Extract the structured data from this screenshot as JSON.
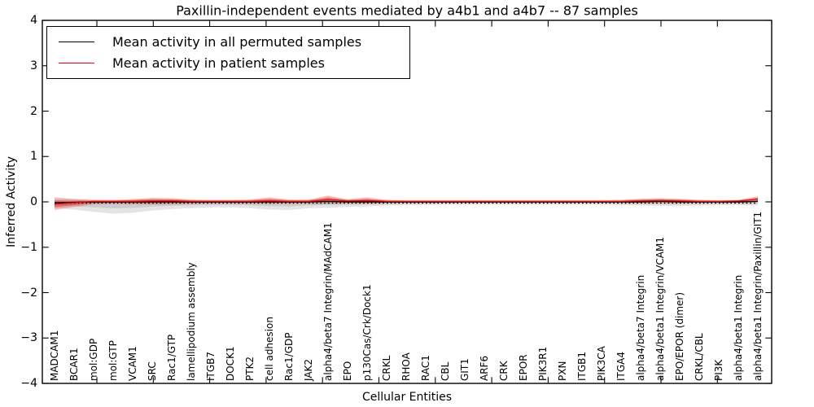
{
  "title": "Paxillin-independent events mediated by a4b1 and a4b7 -- 87 samples",
  "axes": {
    "xlabel": "Cellular Entities",
    "ylabel": "Inferred Activity",
    "ytick_labels": [
      "4",
      "3",
      "2",
      "1",
      "0",
      "−1",
      "−2",
      "−3",
      "−4"
    ]
  },
  "legend": {
    "items": [
      {
        "label": "Mean activity in all permuted samples",
        "color": "#000000"
      },
      {
        "label": "Mean activity in patient samples",
        "color": "#ff0000"
      }
    ]
  },
  "chart_data": {
    "type": "line",
    "title": "Paxillin-independent events mediated by a4b1 and a4b7 -- 87 samples",
    "xlabel": "Cellular Entities",
    "ylabel": "Inferred Activity",
    "ylim": [
      -4,
      4
    ],
    "yticks": [
      4,
      3,
      2,
      1,
      0,
      -1,
      -2,
      -3,
      -4
    ],
    "grid": false,
    "legend_position": "upper left",
    "zero_line_style": "dotted",
    "sample_count_in_title": 87,
    "categories": [
      "MADCAM1",
      "BCAR1",
      "mol:GDP",
      "mol:GTP",
      "VCAM1",
      "SRC",
      "Rac1/GTP",
      "lamellipodium assembly",
      "ITGB7",
      "DOCK1",
      "PTK2",
      "cell adhesion",
      "Rac1/GDP",
      "JAK2",
      "alpha4/beta7 Integrin/MAdCAM1",
      "EPO",
      "p130Cas/Crk/Dock1",
      "CRKL",
      "RHOA",
      "RAC1",
      "CBL",
      "GIT1",
      "ARF6",
      "CRK",
      "EPOR",
      "PIK3R1",
      "PXN",
      "ITGB1",
      "PIK3CA",
      "ITGA4",
      "alpha4/beta7 Integrin",
      "alpha4/beta1 Integrin/VCAM1",
      "EPO/EPOR (dimer)",
      "CRKL/CBL",
      "PI3K",
      "alpha4/beta1 Integrin",
      "alpha4/beta1 Integrin/Paxillin/GIT1"
    ],
    "series": [
      {
        "name": "Mean activity in all permuted samples",
        "color": "#000000",
        "band_color": "#787878",
        "values": [
          -0.02,
          -0.01,
          0,
          0,
          0,
          0,
          0,
          0,
          0,
          0,
          0,
          0,
          0,
          0,
          0.01,
          0,
          0,
          0,
          0,
          0,
          0,
          0,
          0,
          0,
          0,
          0,
          0,
          0,
          0,
          0,
          0,
          0.01,
          0,
          0,
          0,
          0,
          0.01
        ],
        "band_upper": [
          0.06,
          0.07,
          0.06,
          0.05,
          0.05,
          0.06,
          0.06,
          0.05,
          0.05,
          0.05,
          0.05,
          0.06,
          0.05,
          0.05,
          0.06,
          0.05,
          0.05,
          0.05,
          0.04,
          0.04,
          0.04,
          0.04,
          0.04,
          0.04,
          0.04,
          0.04,
          0.04,
          0.04,
          0.04,
          0.05,
          0.05,
          0.06,
          0.05,
          0.05,
          0.04,
          0.05,
          0.06
        ],
        "band_lower": [
          -0.13,
          -0.17,
          -0.22,
          -0.26,
          -0.24,
          -0.19,
          -0.16,
          -0.14,
          -0.12,
          -0.12,
          -0.14,
          -0.17,
          -0.18,
          -0.14,
          -0.13,
          -0.11,
          -0.1,
          -0.08,
          -0.07,
          -0.07,
          -0.06,
          -0.06,
          -0.06,
          -0.06,
          -0.06,
          -0.06,
          -0.06,
          -0.06,
          -0.06,
          -0.07,
          -0.08,
          -0.09,
          -0.09,
          -0.08,
          -0.07,
          -0.07,
          -0.08
        ]
      },
      {
        "name": "Mean activity in patient samples",
        "color": "#ff0000",
        "band_color": "#de2d26",
        "values": [
          -0.05,
          -0.02,
          0.01,
          0.01,
          0.01,
          0.02,
          0.02,
          0.01,
          0.01,
          0.01,
          0.01,
          0.02,
          0.01,
          0.01,
          0.05,
          0.02,
          0.03,
          0.01,
          0.01,
          0.01,
          0.01,
          0.01,
          0.01,
          0.01,
          0.01,
          0.01,
          0.01,
          0.01,
          0.01,
          0.01,
          0.02,
          0.03,
          0.02,
          0.01,
          0.01,
          0.02,
          0.06
        ],
        "band_upper": [
          0.1,
          0.06,
          0.04,
          0.04,
          0.06,
          0.09,
          0.08,
          0.05,
          0.04,
          0.04,
          0.05,
          0.1,
          0.05,
          0.05,
          0.14,
          0.06,
          0.1,
          0.04,
          0.03,
          0.03,
          0.03,
          0.03,
          0.03,
          0.03,
          0.03,
          0.03,
          0.03,
          0.03,
          0.03,
          0.04,
          0.07,
          0.08,
          0.07,
          0.04,
          0.03,
          0.04,
          0.12
        ],
        "band_lower": [
          -0.18,
          -0.11,
          -0.05,
          -0.04,
          -0.05,
          -0.06,
          -0.05,
          -0.04,
          -0.03,
          -0.03,
          -0.03,
          -0.04,
          -0.03,
          -0.03,
          -0.04,
          -0.02,
          -0.03,
          -0.02,
          -0.02,
          -0.02,
          -0.02,
          -0.02,
          -0.01,
          -0.01,
          -0.01,
          -0.01,
          -0.01,
          -0.01,
          -0.01,
          -0.01,
          -0.02,
          -0.02,
          -0.02,
          -0.01,
          -0.01,
          -0.01,
          0.01
        ]
      }
    ]
  }
}
